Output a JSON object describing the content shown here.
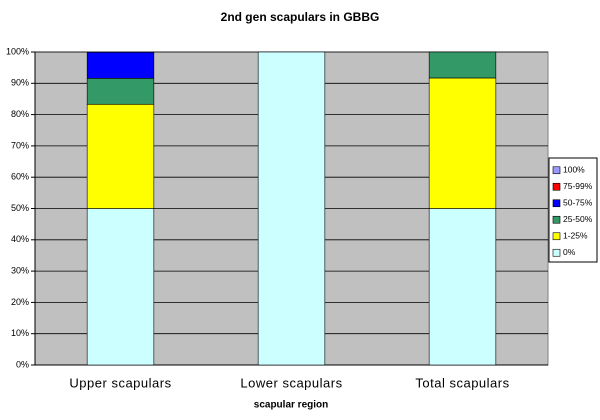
{
  "chart_data": {
    "type": "stacked_bar",
    "title": "2nd gen scapulars in GBBG",
    "x_label": "scapular region",
    "categories": [
      "Upper scapulars",
      "Lower scapulars",
      "Total scapulars"
    ],
    "series": [
      {
        "name": "0%",
        "color": "#ccffff",
        "values": [
          50,
          100,
          50
        ]
      },
      {
        "name": "1-25%",
        "color": "#ffff00",
        "values": [
          33.3,
          0,
          41.7
        ]
      },
      {
        "name": "25-50%",
        "color": "#339966",
        "values": [
          8.3,
          0,
          8.3
        ]
      },
      {
        "name": "50-75%",
        "color": "#0000ff",
        "values": [
          8.3,
          0,
          0
        ]
      },
      {
        "name": "75-99%",
        "color": "#ff0000",
        "values": [
          0,
          0,
          0
        ]
      },
      {
        "name": "100%",
        "color": "#9999ff",
        "values": [
          0,
          0,
          0
        ]
      }
    ],
    "ylim": [
      0,
      100
    ],
    "yticks": [
      {
        "value": 0,
        "label": "0%"
      },
      {
        "value": 10,
        "label": "10%"
      },
      {
        "value": 20,
        "label": "20%"
      },
      {
        "value": 30,
        "label": "30%"
      },
      {
        "value": 40,
        "label": "40%"
      },
      {
        "value": 50,
        "label": "50%"
      },
      {
        "value": 60,
        "label": "60%"
      },
      {
        "value": 70,
        "label": "70%"
      },
      {
        "value": 80,
        "label": "80%"
      },
      {
        "value": 90,
        "label": "90%"
      },
      {
        "value": 100,
        "label": "100%"
      }
    ],
    "grid": true,
    "legend": "right"
  }
}
